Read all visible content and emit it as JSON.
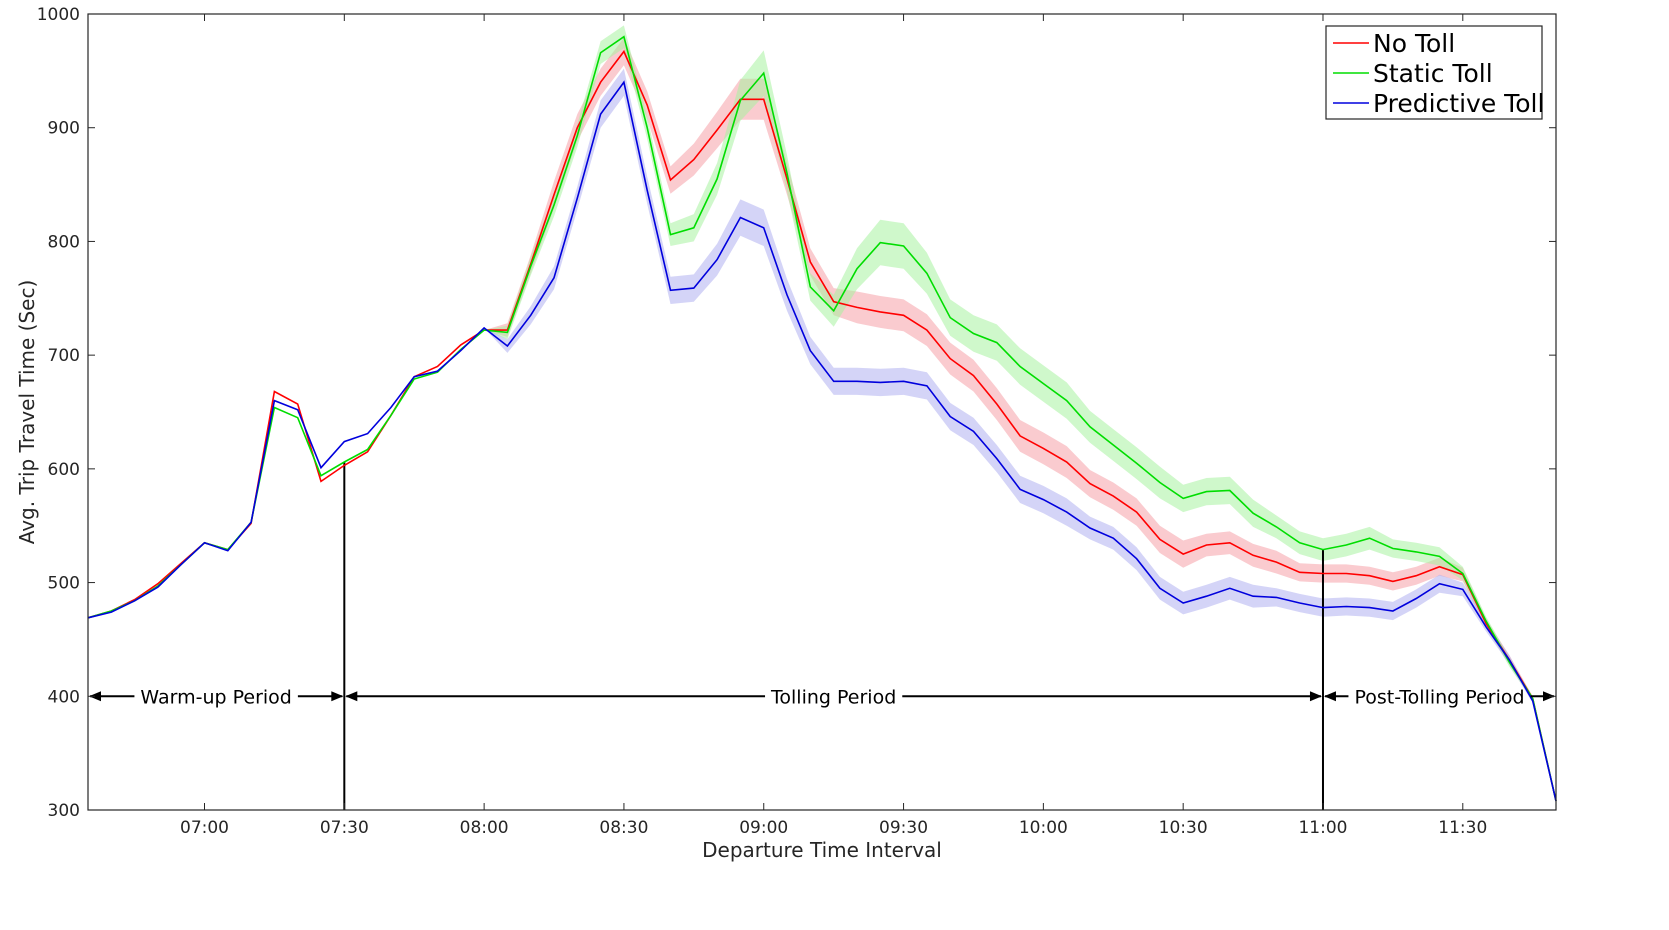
{
  "chart_data": {
    "type": "line",
    "title": "",
    "xlabel": "Departure Time Interval",
    "ylabel": "Avg. Trip Travel Time (Sec)",
    "ylim": [
      300,
      1000
    ],
    "yticks": [
      "300",
      "400",
      "500",
      "600",
      "700",
      "800",
      "900",
      "1000"
    ],
    "xticks": [
      "07:00",
      "07:30",
      "08:00",
      "08:30",
      "09:00",
      "09:30",
      "10:00",
      "10:30",
      "11:00",
      "11:30"
    ],
    "xlim_minutes": [
      395,
      710
    ],
    "x_minutes": [
      395,
      400,
      405,
      410,
      415,
      420,
      425,
      430,
      435,
      440,
      445,
      450,
      455,
      460,
      465,
      470,
      475,
      480,
      485,
      490,
      495,
      500,
      505,
      510,
      515,
      520,
      525,
      530,
      535,
      540,
      545,
      550,
      555,
      560,
      565,
      570,
      575,
      580,
      585,
      590,
      595,
      600,
      605,
      610,
      615,
      620,
      625,
      630,
      635,
      640,
      645,
      650,
      655,
      660,
      665,
      670,
      675,
      680,
      685,
      690,
      695,
      700,
      705,
      710
    ],
    "series": [
      {
        "name": "No Toll",
        "color": "#ff0000",
        "band_color": "#f6a0a8",
        "values": [
          469,
          475,
          485,
          499,
          517,
          535,
          529,
          552,
          668,
          657,
          589,
          603,
          615,
          647,
          681,
          690,
          709,
          722,
          722,
          780,
          841,
          900,
          940,
          967,
          920,
          854,
          872,
          898,
          925,
          925,
          855,
          782,
          747,
          742,
          738,
          735,
          722,
          697,
          682,
          657,
          629,
          618,
          606,
          587,
          576,
          562,
          538,
          525,
          533,
          535,
          524,
          518,
          509,
          508,
          508,
          506,
          501,
          506,
          514,
          507,
          464,
          432,
          398,
          308
        ],
        "band_width": [
          0,
          0,
          0,
          0,
          0,
          0,
          0,
          0,
          0,
          0,
          0,
          0,
          0,
          0,
          0,
          0,
          0,
          0,
          6,
          8,
          12,
          12,
          12,
          12,
          12,
          12,
          14,
          16,
          18,
          18,
          14,
          12,
          12,
          14,
          14,
          14,
          14,
          14,
          14,
          14,
          14,
          14,
          14,
          12,
          12,
          12,
          12,
          12,
          10,
          10,
          10,
          10,
          8,
          8,
          8,
          8,
          8,
          8,
          8,
          6,
          4,
          4,
          2,
          0
        ]
      },
      {
        "name": "Static Toll",
        "color": "#00dd00",
        "band_color": "#a8f2a0",
        "values": [
          469,
          475,
          484,
          497,
          516,
          535,
          529,
          553,
          654,
          645,
          594,
          606,
          617,
          647,
          679,
          685,
          705,
          722,
          720,
          778,
          832,
          893,
          966,
          980,
          900,
          806,
          812,
          855,
          924,
          948,
          860,
          760,
          739,
          776,
          799,
          796,
          772,
          733,
          719,
          711,
          690,
          675,
          660,
          637,
          621,
          605,
          588,
          574,
          580,
          581,
          561,
          549,
          535,
          529,
          533,
          539,
          530,
          527,
          523,
          508,
          466,
          430,
          398,
          308
        ],
        "band_width": [
          0,
          0,
          0,
          0,
          0,
          0,
          0,
          0,
          0,
          0,
          0,
          0,
          0,
          0,
          0,
          0,
          0,
          0,
          6,
          8,
          10,
          10,
          10,
          10,
          10,
          10,
          12,
          14,
          18,
          20,
          16,
          12,
          14,
          18,
          20,
          20,
          18,
          16,
          16,
          16,
          16,
          16,
          16,
          14,
          14,
          14,
          14,
          12,
          12,
          12,
          12,
          10,
          10,
          10,
          10,
          10,
          8,
          8,
          8,
          6,
          4,
          4,
          2,
          0
        ]
      },
      {
        "name": "Predictive Toll",
        "color": "#0000dd",
        "band_color": "#b0b0f0",
        "values": [
          469,
          474,
          484,
          496,
          516,
          535,
          528,
          553,
          660,
          652,
          601,
          624,
          631,
          654,
          681,
          686,
          704,
          724,
          708,
          735,
          768,
          838,
          912,
          940,
          845,
          757,
          759,
          784,
          821,
          812,
          753,
          704,
          677,
          677,
          676,
          677,
          673,
          646,
          633,
          609,
          582,
          573,
          562,
          548,
          539,
          521,
          495,
          482,
          488,
          495,
          488,
          487,
          482,
          478,
          479,
          478,
          475,
          486,
          499,
          494,
          461,
          432,
          396,
          308
        ],
        "band_width": [
          0,
          0,
          0,
          0,
          0,
          0,
          0,
          0,
          0,
          0,
          0,
          0,
          0,
          0,
          0,
          0,
          0,
          0,
          6,
          8,
          10,
          10,
          12,
          12,
          12,
          12,
          12,
          14,
          16,
          16,
          14,
          12,
          12,
          12,
          12,
          12,
          12,
          12,
          12,
          12,
          12,
          12,
          12,
          10,
          10,
          10,
          10,
          10,
          10,
          10,
          10,
          8,
          8,
          8,
          8,
          8,
          8,
          8,
          8,
          6,
          4,
          4,
          2,
          0
        ]
      }
    ],
    "legend": {
      "position": "top-right",
      "entries": [
        "No Toll",
        "Static Toll",
        "Predictive Toll"
      ]
    },
    "periods": [
      {
        "label": "Warm-up Period",
        "start_minutes": 395,
        "end_minutes": 450
      },
      {
        "label": "Tolling Period",
        "start_minutes": 450,
        "end_minutes": 660
      },
      {
        "label": "Post-Tolling Period",
        "start_minutes": 660,
        "end_minutes": 710
      }
    ],
    "period_marker_value": 400,
    "grid": false
  }
}
